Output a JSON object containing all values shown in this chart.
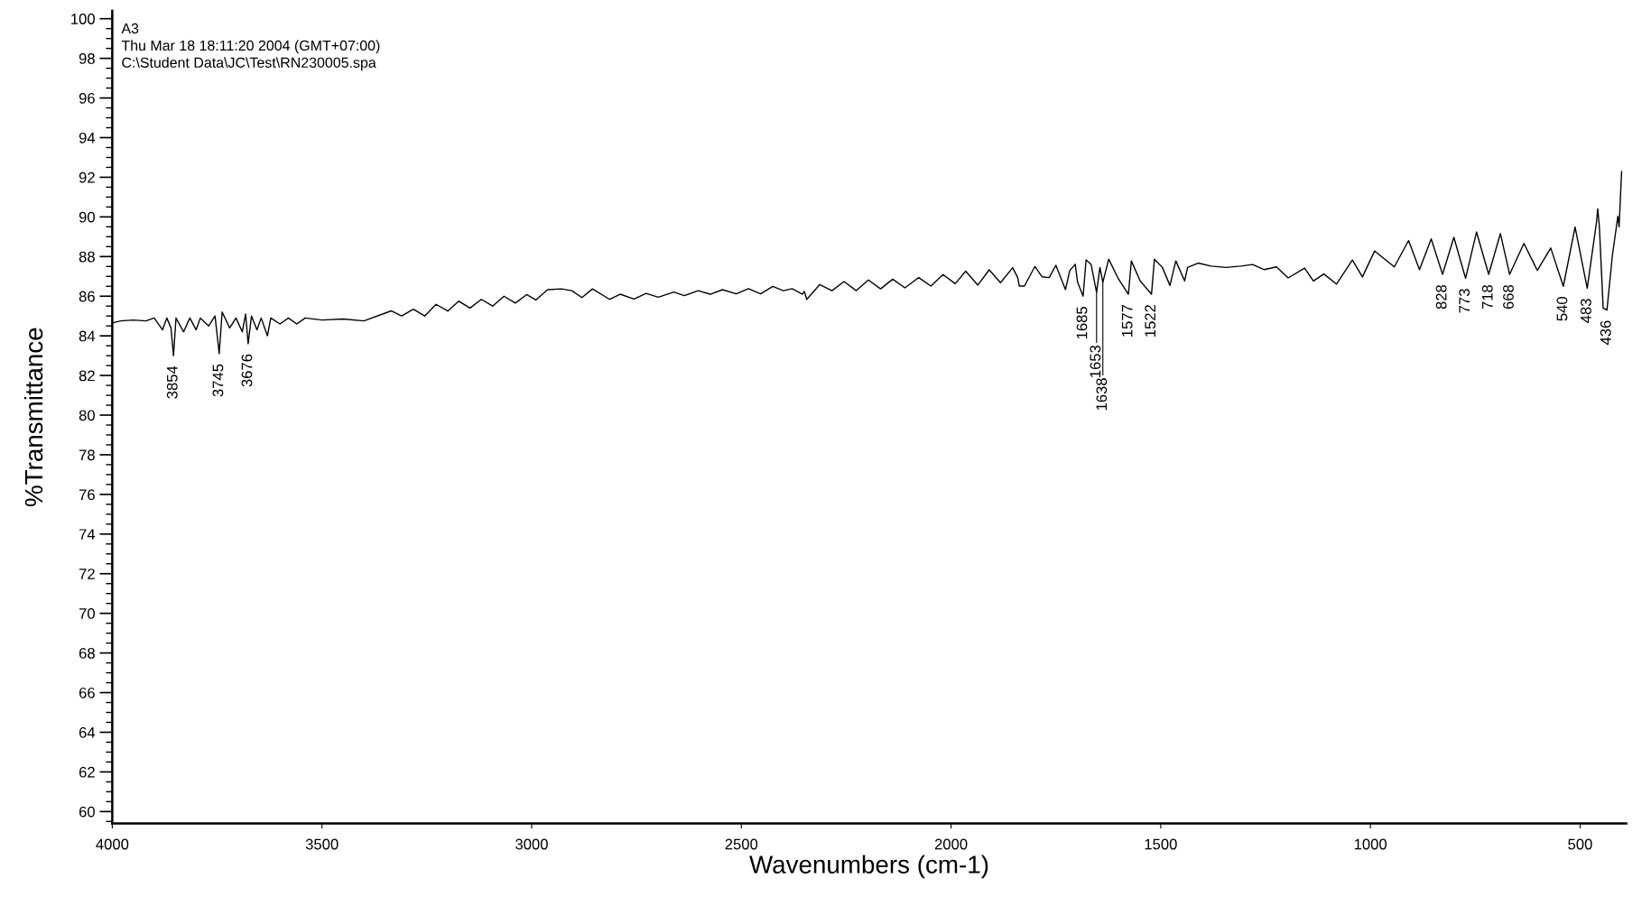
{
  "chart_data": {
    "type": "line",
    "xlabel": "Wavenumbers (cm-1)",
    "ylabel": "%Transmittance",
    "annotations": [
      "A3",
      "Thu Mar 18 18:11:20 2004 (GMT+07:00)",
      "C:\\Student Data\\JC\\Test\\RN230005.spa",
      {
        "text": "3854",
        "x": 3854,
        "y": 83.0
      },
      {
        "text": "3745",
        "x": 3745,
        "y": 83.1
      },
      {
        "text": "3676",
        "x": 3676,
        "y": 83.6
      },
      {
        "text": "1685",
        "x": 1685,
        "y": 86.0
      },
      {
        "text": "1653",
        "x": 1653,
        "y": 86.2
      },
      {
        "text": "1638",
        "x": 1638,
        "y": 86.7
      },
      {
        "text": "1577",
        "x": 1577,
        "y": 86.1
      },
      {
        "text": "1522",
        "x": 1522,
        "y": 86.1
      },
      {
        "text": "828",
        "x": 828,
        "y": 87.1
      },
      {
        "text": "773",
        "x": 773,
        "y": 86.9
      },
      {
        "text": "718",
        "x": 718,
        "y": 87.1
      },
      {
        "text": "668",
        "x": 668,
        "y": 87.1
      },
      {
        "text": "540",
        "x": 540,
        "y": 86.5
      },
      {
        "text": "483",
        "x": 483,
        "y": 86.4
      },
      {
        "text": "436",
        "x": 436,
        "y": 85.3
      }
    ],
    "x": [
      4000,
      3980,
      3950,
      3920,
      3900,
      3880,
      3870,
      3860,
      3854,
      3848,
      3830,
      3815,
      3800,
      3790,
      3770,
      3755,
      3745,
      3738,
      3720,
      3705,
      3690,
      3682,
      3676,
      3668,
      3655,
      3645,
      3630,
      3622,
      3600,
      3580,
      3560,
      3540,
      3500,
      3450,
      3400,
      3335,
      3310,
      3282,
      3255,
      3228,
      3200,
      3174,
      3147,
      3120,
      3093,
      3066,
      3039,
      3012,
      2990,
      2962,
      2929,
      2904,
      2880,
      2855,
      2814,
      2789,
      2756,
      2727,
      2698,
      2661,
      2636,
      2603,
      2574,
      2545,
      2512,
      2483,
      2454,
      2425,
      2400,
      2379,
      2354,
      2350,
      2344,
      2313,
      2284,
      2255,
      2226,
      2197,
      2168,
      2139,
      2110,
      2077,
      2048,
      2019,
      1990,
      1965,
      1936,
      1909,
      1882,
      1853,
      1841,
      1837,
      1825,
      1800,
      1783,
      1766,
      1750,
      1727,
      1717,
      1704,
      1698,
      1685,
      1678,
      1666,
      1653,
      1645,
      1638,
      1624,
      1602,
      1577,
      1570,
      1549,
      1522,
      1515,
      1496,
      1478,
      1464,
      1443,
      1436,
      1411,
      1380,
      1344,
      1309,
      1281,
      1253,
      1224,
      1196,
      1157,
      1136,
      1111,
      1081,
      1043,
      1019,
      990,
      943,
      909,
      883,
      855,
      828,
      801,
      773,
      747,
      718,
      690,
      668,
      634,
      602,
      570,
      540,
      512,
      483,
      461,
      458,
      454,
      445,
      436,
      423,
      410,
      407,
      401
    ],
    "values": [
      84.65,
      84.75,
      84.8,
      84.75,
      84.9,
      84.3,
      84.9,
      84.4,
      83.0,
      84.9,
      84.2,
      84.9,
      84.3,
      84.9,
      84.5,
      85.0,
      83.1,
      85.2,
      84.4,
      84.9,
      84.2,
      85.1,
      83.6,
      85.0,
      84.3,
      84.9,
      84.0,
      84.9,
      84.6,
      84.9,
      84.6,
      84.9,
      84.8,
      84.85,
      84.75,
      85.26,
      85.0,
      85.34,
      85.0,
      85.59,
      85.25,
      85.75,
      85.4,
      85.84,
      85.5,
      86.0,
      85.65,
      86.08,
      85.81,
      86.33,
      86.37,
      86.28,
      85.93,
      86.37,
      85.84,
      86.1,
      85.86,
      86.14,
      85.95,
      86.21,
      86.03,
      86.28,
      86.1,
      86.33,
      86.12,
      86.38,
      86.12,
      86.49,
      86.28,
      86.38,
      86.1,
      86.25,
      85.84,
      86.59,
      86.28,
      86.74,
      86.28,
      86.82,
      86.37,
      86.86,
      86.42,
      86.94,
      86.51,
      87.09,
      86.63,
      87.26,
      86.56,
      87.33,
      86.68,
      87.44,
      86.94,
      86.51,
      86.51,
      87.5,
      86.98,
      86.94,
      87.56,
      86.33,
      87.29,
      87.61,
      86.69,
      86.0,
      87.83,
      87.6,
      86.2,
      87.45,
      86.7,
      87.87,
      86.92,
      86.1,
      87.78,
      86.77,
      86.1,
      87.87,
      87.45,
      86.54,
      87.78,
      86.77,
      87.45,
      87.67,
      87.52,
      87.45,
      87.52,
      87.6,
      87.34,
      87.48,
      86.92,
      87.42,
      86.77,
      87.12,
      86.61,
      87.83,
      86.97,
      88.28,
      87.48,
      88.81,
      87.34,
      88.89,
      87.1,
      88.97,
      86.9,
      89.24,
      87.1,
      89.16,
      87.1,
      88.66,
      87.3,
      88.43,
      86.5,
      89.49,
      86.4,
      89.72,
      90.41,
      89.5,
      85.4,
      85.3,
      88.06,
      90.03,
      89.5,
      92.3
    ],
    "color": "#000000",
    "xlim": [
      4000,
      390
    ],
    "xticks": [
      4000,
      3500,
      3000,
      2500,
      2000,
      1500,
      1000,
      500
    ],
    "ylim": [
      59.4,
      100.4
    ],
    "yticks": [
      60,
      62,
      64,
      66,
      68,
      70,
      72,
      74,
      76,
      78,
      80,
      82,
      84,
      86,
      88,
      90,
      92,
      94,
      96,
      98,
      100
    ],
    "grid": false
  }
}
